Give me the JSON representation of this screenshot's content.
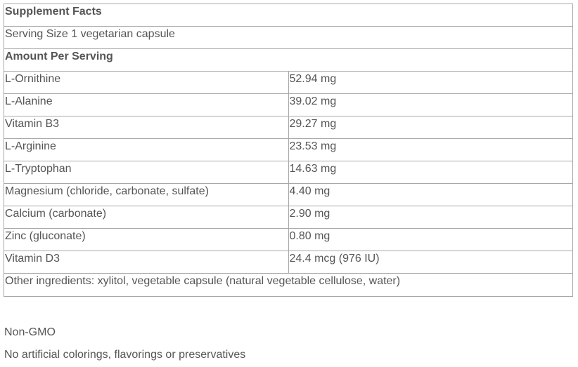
{
  "title": "Supplement Facts",
  "serving_size": "Serving Size 1 vegetarian capsule",
  "amount_header": "Amount Per Serving",
  "nutrients": [
    {
      "name": "L-Ornithine",
      "amount": "52.94 mg"
    },
    {
      "name": "L-Alanine",
      "amount": "39.02 mg"
    },
    {
      "name": "Vitamin B3",
      "amount": "29.27 mg"
    },
    {
      "name": "L-Arginine",
      "amount": "23.53 mg"
    },
    {
      "name": "L-Tryptophan",
      "amount": "14.63 mg"
    },
    {
      "name": "Magnesium (chloride, carbonate, sulfate)",
      "amount": "4.40 mg"
    },
    {
      "name": "Calcium (carbonate)",
      "amount": "2.90 mg"
    },
    {
      "name": "Zinc (gluconate)",
      "amount": "0.80 mg"
    },
    {
      "name": "Vitamin D3",
      "amount": "24.4 mcg (976 IU)"
    }
  ],
  "other_ingredients": "Other ingredients: xylitol, vegetable capsule (natural vegetable cellulose, water)",
  "notes": [
    "Non-GMO",
    "No artificial colorings, flavorings or preservatives"
  ]
}
